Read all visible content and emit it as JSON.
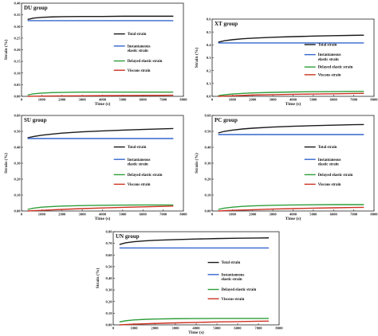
{
  "series_styles": [
    {
      "key": "total",
      "color": "#1a1a1a"
    },
    {
      "key": "instantaneous",
      "color": "#3366cc"
    },
    {
      "key": "delayed",
      "color": "#2e9e3a"
    },
    {
      "key": "viscous",
      "color": "#cc3322"
    }
  ],
  "chart_data": [
    {
      "type": "line",
      "title": "DU group",
      "xlabel": "Time (s)",
      "ylabel": "Strain (%)",
      "xlim": [
        0,
        8000
      ],
      "ylim": [
        0,
        0.4
      ],
      "xticks": [
        "0",
        "1000",
        "2000",
        "3000",
        "4000",
        "5000",
        "6000",
        "7000",
        "8000"
      ],
      "yticks": [
        "0.00",
        "0.05",
        "0.10",
        "0.15",
        "0.20",
        "0.25",
        "0.30",
        "0.35",
        "0.40"
      ],
      "yticks_values": [
        0,
        0.05,
        0.1,
        0.15,
        0.2,
        0.25,
        0.3,
        0.35,
        0.4
      ],
      "x": [
        300,
        600,
        1000,
        1500,
        2000,
        3000,
        4000,
        5000,
        6000,
        7000,
        7500
      ],
      "series": [
        {
          "name": "Total strain",
          "values": [
            0.33,
            0.336,
            0.339,
            0.341,
            0.342,
            0.343,
            0.343,
            0.344,
            0.344,
            0.344,
            0.344
          ]
        },
        {
          "name": "Instantaneous elastic strain",
          "values": [
            0.325,
            0.325,
            0.325,
            0.325,
            0.325,
            0.325,
            0.325,
            0.325,
            0.325,
            0.325,
            0.325
          ]
        },
        {
          "name": "Delayed elastic strain",
          "values": [
            0.006,
            0.011,
            0.014,
            0.016,
            0.017,
            0.018,
            0.018,
            0.018,
            0.018,
            0.018,
            0.018
          ]
        },
        {
          "name": "Viscous strain",
          "values": [
            0.0,
            0.0005,
            0.001,
            0.0015,
            0.002,
            0.0025,
            0.003,
            0.0035,
            0.004,
            0.0045,
            0.005
          ]
        }
      ],
      "legend": [
        "Total strain",
        "Instantaneous elastic strain",
        "Delayed elastic strain",
        "Viscous strain"
      ]
    },
    {
      "type": "line",
      "title": "XT group",
      "xlabel": "Time (s)",
      "ylabel": "Strain (%)",
      "xlim": [
        0,
        8000
      ],
      "ylim": [
        0,
        0.6
      ],
      "xticks": [
        "0",
        "1000",
        "2000",
        "3000",
        "4000",
        "5000",
        "6000",
        "7000",
        "8000"
      ],
      "yticks": [
        "0.0",
        "0.1",
        "0.2",
        "0.3",
        "0.4",
        "0.5",
        "0.6"
      ],
      "yticks_values": [
        0,
        0.1,
        0.2,
        0.3,
        0.4,
        0.5,
        0.6
      ],
      "x": [
        300,
        600,
        1000,
        1500,
        2000,
        3000,
        4000,
        5000,
        6000,
        7000,
        7500
      ],
      "series": [
        {
          "name": "Total strain",
          "values": [
            0.42,
            0.432,
            0.44,
            0.447,
            0.452,
            0.459,
            0.464,
            0.468,
            0.471,
            0.474,
            0.475
          ]
        },
        {
          "name": "Instantaneous elastic strain",
          "values": [
            0.415,
            0.415,
            0.415,
            0.415,
            0.415,
            0.415,
            0.415,
            0.415,
            0.415,
            0.415,
            0.415
          ]
        },
        {
          "name": "Delayed elastic strain",
          "values": [
            0.005,
            0.012,
            0.018,
            0.023,
            0.027,
            0.031,
            0.034,
            0.036,
            0.037,
            0.038,
            0.038
          ]
        },
        {
          "name": "Viscous strain",
          "values": [
            0.0,
            0.002,
            0.004,
            0.007,
            0.01,
            0.013,
            0.016,
            0.018,
            0.02,
            0.022,
            0.023
          ]
        }
      ],
      "legend": [
        "Total strain",
        "Instantaneous elastic strain",
        "Delayed elastic strain",
        "Viscous strain"
      ]
    },
    {
      "type": "line",
      "title": "SU group",
      "xlabel": "Time (s)",
      "ylabel": "Strain (%)",
      "xlim": [
        0,
        8000
      ],
      "ylim": [
        0,
        0.6
      ],
      "xticks": [
        "0",
        "1000",
        "2000",
        "3000",
        "4000",
        "5000",
        "6000",
        "7000",
        "8000"
      ],
      "yticks": [
        "0.00",
        "0.10",
        "0.20",
        "0.30",
        "0.40",
        "0.50",
        "0.60"
      ],
      "yticks_values": [
        0,
        0.1,
        0.2,
        0.3,
        0.4,
        0.5,
        0.6
      ],
      "x": [
        300,
        600,
        1000,
        1500,
        2000,
        3000,
        4000,
        5000,
        6000,
        7000,
        7500
      ],
      "series": [
        {
          "name": "Total strain",
          "values": [
            0.46,
            0.468,
            0.476,
            0.483,
            0.489,
            0.497,
            0.503,
            0.508,
            0.512,
            0.516,
            0.518
          ]
        },
        {
          "name": "Instantaneous elastic strain",
          "values": [
            0.455,
            0.455,
            0.455,
            0.455,
            0.455,
            0.455,
            0.455,
            0.455,
            0.455,
            0.455,
            0.455
          ]
        },
        {
          "name": "Delayed elastic strain",
          "values": [
            0.01,
            0.018,
            0.024,
            0.028,
            0.031,
            0.034,
            0.036,
            0.037,
            0.038,
            0.038,
            0.038
          ]
        },
        {
          "name": "Viscous strain",
          "values": [
            0.0,
            0.002,
            0.004,
            0.007,
            0.01,
            0.015,
            0.019,
            0.023,
            0.026,
            0.029,
            0.031
          ]
        }
      ],
      "legend": [
        "Total strain",
        "Instantaneous elastic strain",
        "Delayed elastic strain",
        "Viscous strain"
      ]
    },
    {
      "type": "line",
      "title": "PC group",
      "xlabel": "Time (s)",
      "ylabel": "Strain (%)",
      "xlim": [
        0,
        8000
      ],
      "ylim": [
        0,
        0.6
      ],
      "xticks": [
        "0",
        "1000",
        "2000",
        "3000",
        "4000",
        "5000",
        "6000",
        "7000",
        "8000"
      ],
      "yticks": [
        "0.00",
        "0.10",
        "0.20",
        "0.30",
        "0.40",
        "0.50",
        "0.60"
      ],
      "yticks_values": [
        0,
        0.1,
        0.2,
        0.3,
        0.4,
        0.5,
        0.6
      ],
      "x": [
        300,
        600,
        1000,
        1500,
        2000,
        3000,
        4000,
        5000,
        6000,
        7000,
        7500
      ],
      "series": [
        {
          "name": "Total strain",
          "values": [
            0.49,
            0.5,
            0.508,
            0.515,
            0.52,
            0.527,
            0.532,
            0.536,
            0.539,
            0.542,
            0.543
          ]
        },
        {
          "name": "Instantaneous elastic strain",
          "values": [
            0.48,
            0.48,
            0.48,
            0.48,
            0.48,
            0.48,
            0.48,
            0.48,
            0.48,
            0.48,
            0.48
          ]
        },
        {
          "name": "Delayed elastic strain",
          "values": [
            0.01,
            0.018,
            0.024,
            0.029,
            0.032,
            0.036,
            0.038,
            0.039,
            0.04,
            0.04,
            0.04
          ]
        },
        {
          "name": "Viscous strain",
          "values": [
            0.0,
            0.002,
            0.004,
            0.006,
            0.008,
            0.012,
            0.015,
            0.018,
            0.02,
            0.022,
            0.023
          ]
        }
      ],
      "legend": [
        "Total strain",
        "Instantaneous elastic strain",
        "Delayed elastic strain",
        "Viscous strain"
      ]
    },
    {
      "type": "line",
      "title": "UN group",
      "xlabel": "Time (s)",
      "ylabel": "Strain (%)",
      "xlim": [
        0,
        8000
      ],
      "ylim": [
        0,
        0.8
      ],
      "xticks": [
        "0",
        "1000",
        "2000",
        "3000",
        "4000",
        "5000",
        "6000",
        "7000",
        "8000"
      ],
      "yticks": [
        "0.00",
        "0.10",
        "0.20",
        "0.30",
        "0.40",
        "0.50",
        "0.60",
        "0.70",
        "0.80"
      ],
      "yticks_values": [
        0,
        0.1,
        0.2,
        0.3,
        0.4,
        0.5,
        0.6,
        0.7,
        0.8
      ],
      "x": [
        300,
        600,
        1000,
        1500,
        2000,
        3000,
        4000,
        5000,
        6000,
        7000,
        7500
      ],
      "series": [
        {
          "name": "Total strain",
          "values": [
            0.69,
            0.705,
            0.714,
            0.721,
            0.726,
            0.732,
            0.737,
            0.741,
            0.744,
            0.746,
            0.747
          ]
        },
        {
          "name": "Instantaneous elastic strain",
          "values": [
            0.66,
            0.66,
            0.66,
            0.66,
            0.66,
            0.66,
            0.66,
            0.66,
            0.66,
            0.66,
            0.66
          ]
        },
        {
          "name": "Delayed elastic strain",
          "values": [
            0.025,
            0.035,
            0.042,
            0.047,
            0.05,
            0.053,
            0.054,
            0.055,
            0.055,
            0.055,
            0.055
          ]
        },
        {
          "name": "Viscous strain",
          "values": [
            0.0,
            0.003,
            0.006,
            0.009,
            0.012,
            0.017,
            0.021,
            0.025,
            0.028,
            0.031,
            0.032
          ]
        }
      ],
      "legend": [
        "Total strain",
        "Instantaneous elastic strain",
        "Delayed elastic strain",
        "Viscous strain"
      ]
    }
  ]
}
